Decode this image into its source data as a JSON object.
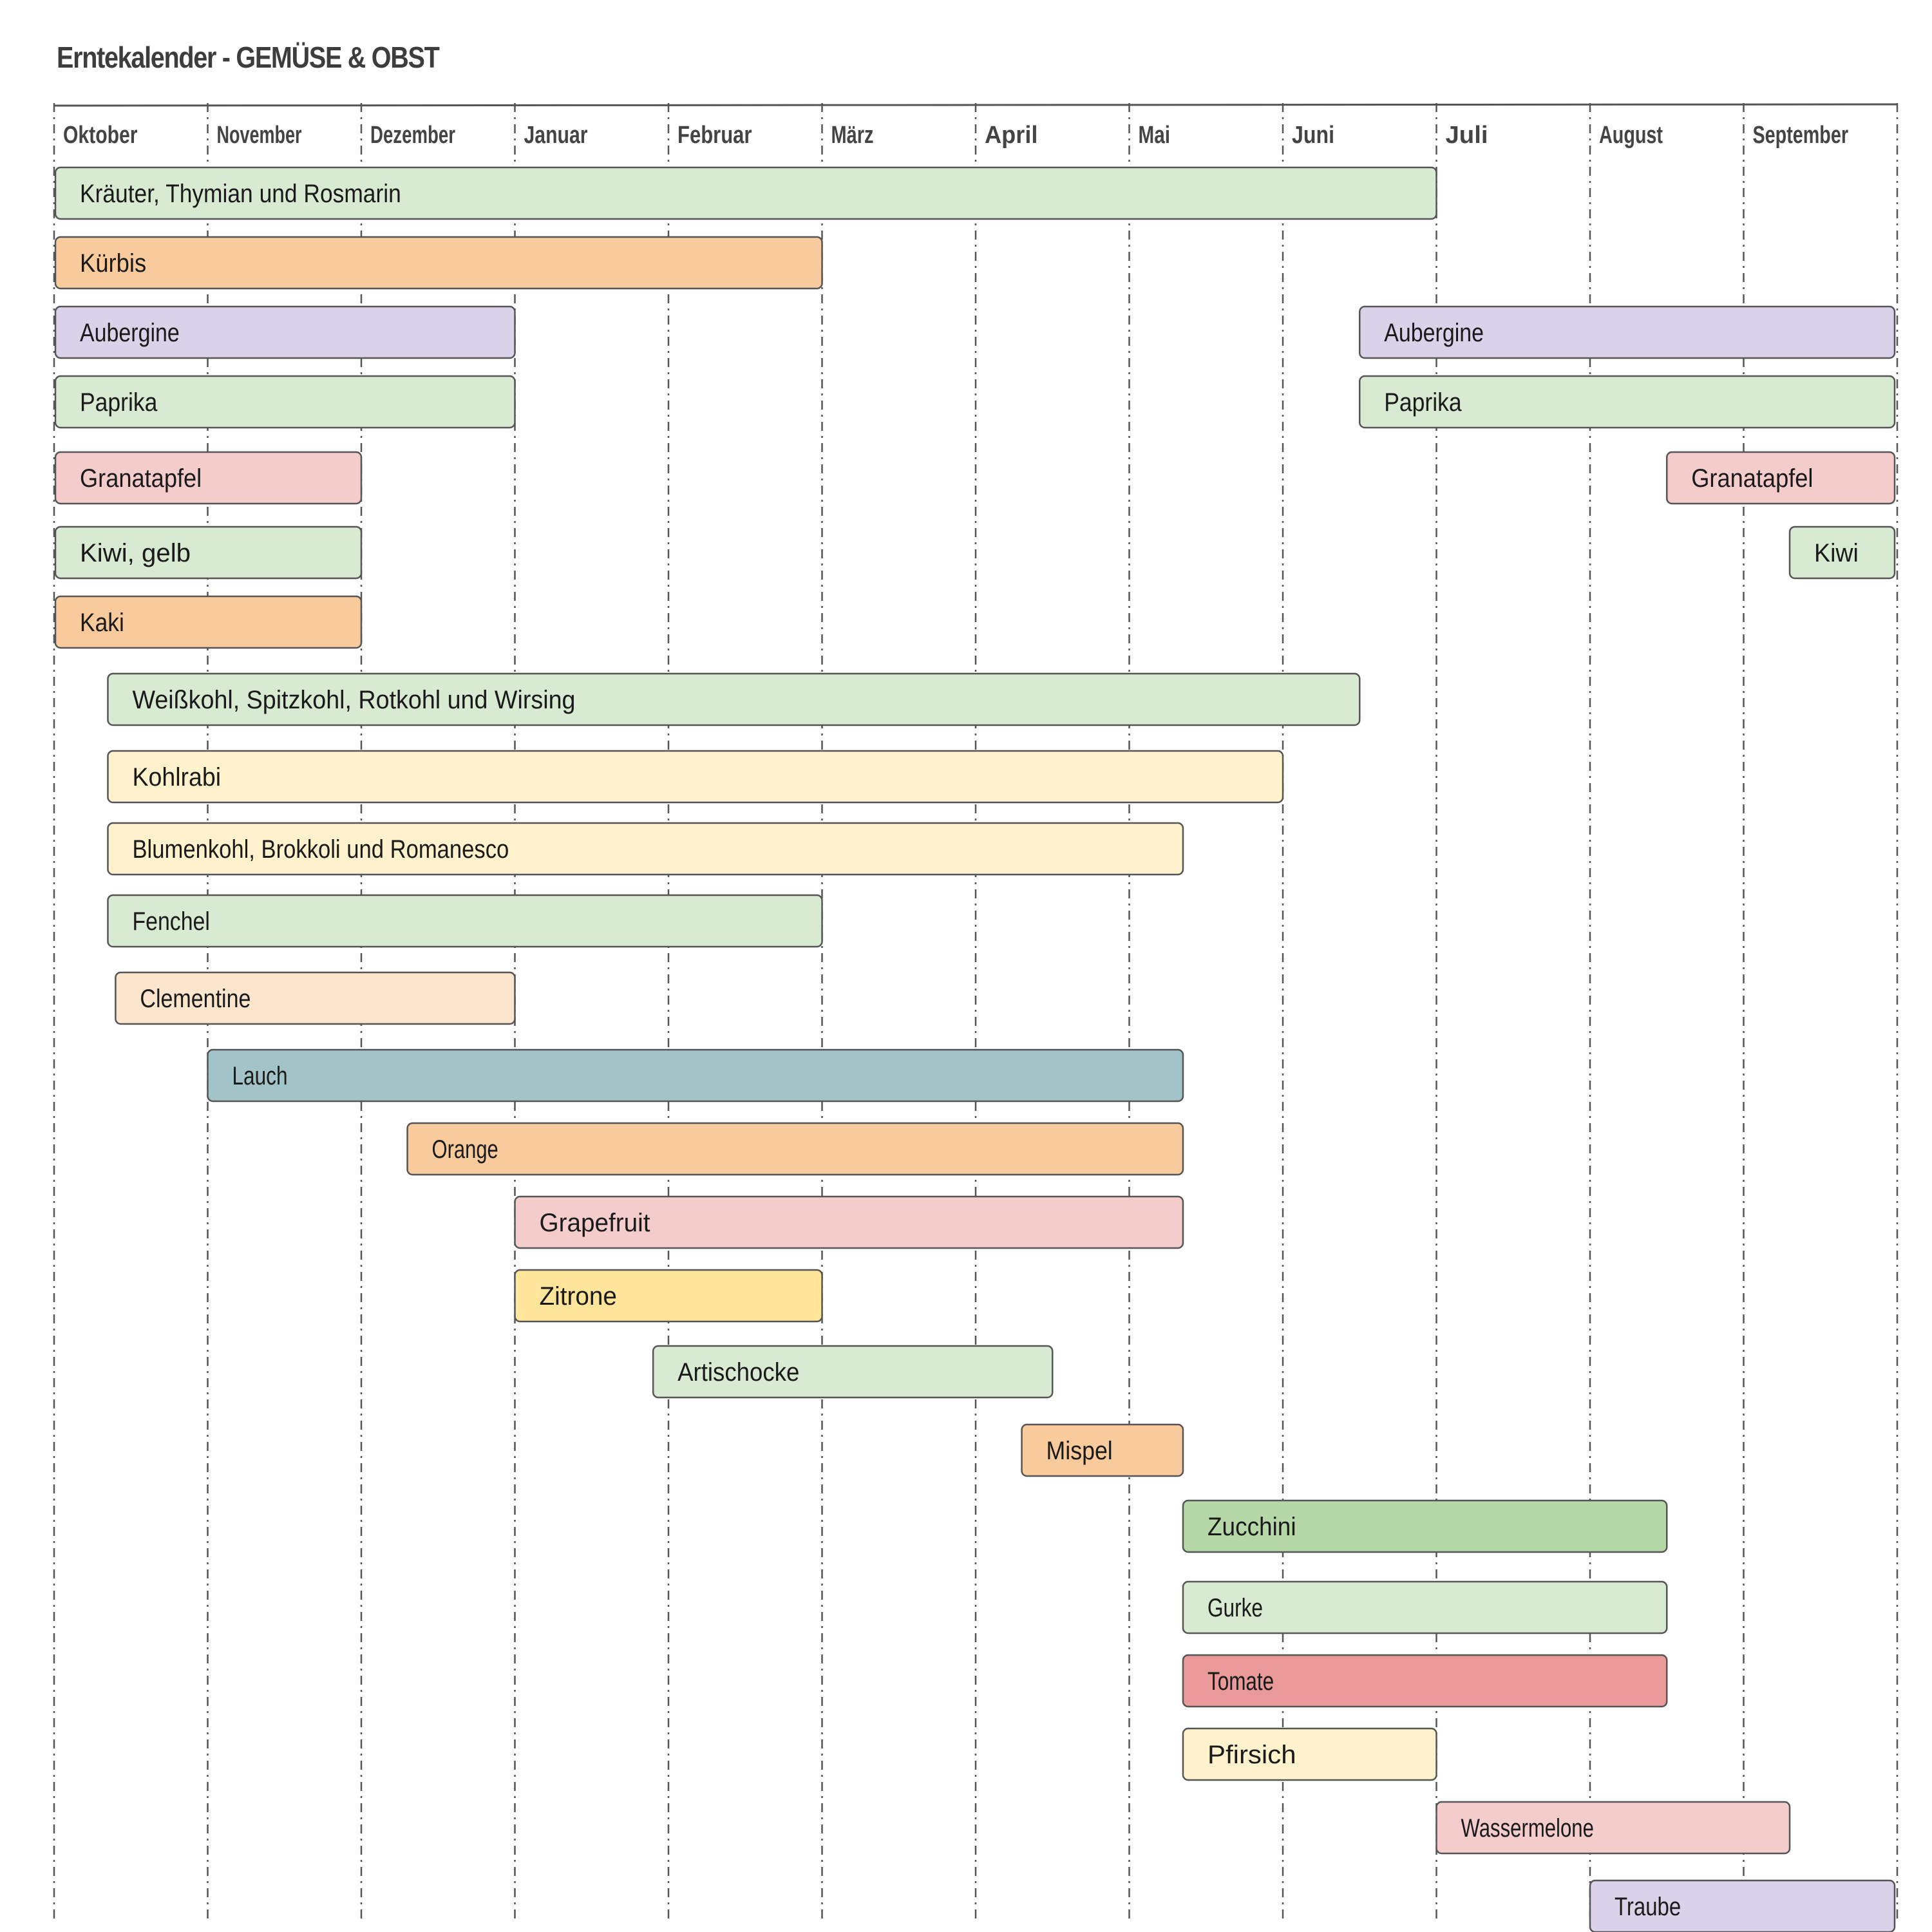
{
  "title": "Erntekalender - GEMÜSE & OBST",
  "colors": {
    "green": "#d9ead3",
    "orange": "#f9cb9c",
    "purple": "#d9d2e9",
    "pink": "#f4cccc",
    "yellow": "#fff2cc",
    "peach": "#fce5cd",
    "teal": "#a2c4c9",
    "gold": "#ffe599",
    "darkgreen": "#b6d7a8",
    "red": "#ea9999",
    "border": "#555555",
    "grid": "#555555"
  },
  "chart_data": {
    "type": "gantt",
    "months": [
      "Oktober",
      "November",
      "Dezember",
      "Januar",
      "Februar",
      "März",
      "April",
      "Mai",
      "Juni",
      "Juli",
      "August",
      "September"
    ],
    "bars": [
      {
        "label": "Kräuter, Thymian und Rosmarin",
        "start": 0.0,
        "end": 9.0,
        "color": "green"
      },
      {
        "label": "Kürbis",
        "start": 0.0,
        "end": 5.0,
        "color": "orange"
      },
      {
        "label": "Aubergine",
        "start": 0.0,
        "end": 3.0,
        "color": "purple"
      },
      {
        "label": "Aubergine",
        "start": 8.5,
        "end": 12.0,
        "color": "purple"
      },
      {
        "label": "Paprika",
        "start": 0.0,
        "end": 3.0,
        "color": "green"
      },
      {
        "label": "Paprika",
        "start": 8.5,
        "end": 12.0,
        "color": "green"
      },
      {
        "label": "Granatapfel",
        "start": 0.0,
        "end": 2.0,
        "color": "pink"
      },
      {
        "label": "Granatapfel",
        "start": 10.5,
        "end": 12.0,
        "color": "pink"
      },
      {
        "label": "Kiwi, gelb",
        "start": 0.0,
        "end": 2.0,
        "color": "green"
      },
      {
        "label": "Kiwi",
        "start": 11.3,
        "end": 12.0,
        "color": "green"
      },
      {
        "label": "Kaki",
        "start": 0.0,
        "end": 2.0,
        "color": "orange"
      },
      {
        "label": "Weißkohl, Spitzkohl, Rotkohl und Wirsing",
        "start": 0.35,
        "end": 8.5,
        "color": "green"
      },
      {
        "label": "Kohlrabi",
        "start": 0.35,
        "end": 8.0,
        "color": "yellow"
      },
      {
        "label": "Blumenkohl, Brokkoli und Romanesco",
        "start": 0.35,
        "end": 7.35,
        "color": "yellow"
      },
      {
        "label": "Fenchel",
        "start": 0.35,
        "end": 5.0,
        "color": "green"
      },
      {
        "label": "Clementine",
        "start": 0.4,
        "end": 3.0,
        "color": "peach"
      },
      {
        "label": "Lauch",
        "start": 1.0,
        "end": 7.35,
        "color": "teal"
      },
      {
        "label": "Orange",
        "start": 2.3,
        "end": 7.35,
        "color": "orange"
      },
      {
        "label": "Grapefruit",
        "start": 3.0,
        "end": 7.35,
        "color": "pink"
      },
      {
        "label": "Zitrone",
        "start": 3.0,
        "end": 5.0,
        "color": "gold"
      },
      {
        "label": "Artischocke",
        "start": 3.9,
        "end": 6.5,
        "color": "green"
      },
      {
        "label": "Mispel",
        "start": 6.3,
        "end": 7.35,
        "color": "orange"
      },
      {
        "label": "Zucchini",
        "start": 7.35,
        "end": 10.5,
        "color": "darkgreen"
      },
      {
        "label": "Gurke",
        "start": 7.35,
        "end": 10.5,
        "color": "green"
      },
      {
        "label": "Tomate",
        "start": 7.35,
        "end": 10.5,
        "color": "red"
      },
      {
        "label": "Pfirsich",
        "start": 7.35,
        "end": 9.0,
        "color": "yellow"
      },
      {
        "label": "Wassermelone",
        "start": 9.0,
        "end": 11.3,
        "color": "pink"
      },
      {
        "label": "Traube",
        "start": 10.0,
        "end": 12.0,
        "color": "purple"
      }
    ]
  }
}
